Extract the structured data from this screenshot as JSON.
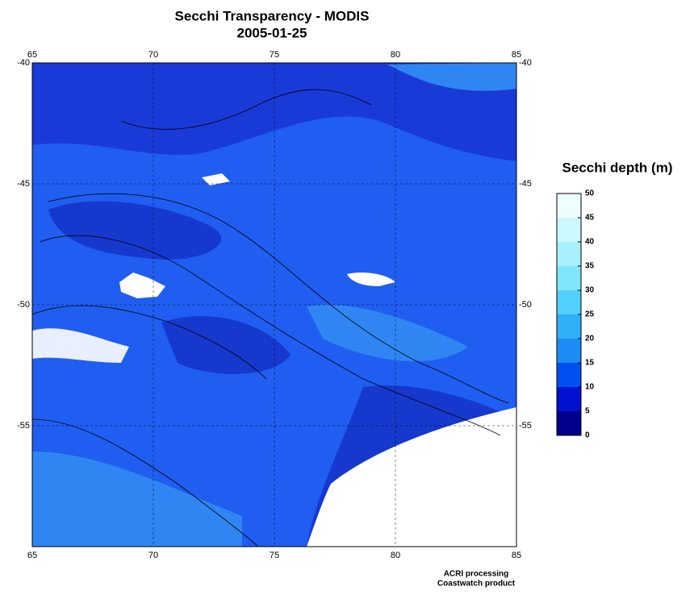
{
  "map": {
    "title": "Secchi Transparency - MODIS",
    "subtitle": "2005-01-25",
    "xlim": [
      65,
      85
    ],
    "xticks": [
      65,
      70,
      75,
      80,
      85
    ],
    "ylim": [
      -60,
      -40
    ],
    "yticks": [
      -40,
      -45,
      -50,
      -55
    ],
    "grid": true
  },
  "colorbar": {
    "title": "Secchi depth (m)",
    "lim": [
      0,
      50
    ],
    "ticks": [
      0,
      5,
      10,
      15,
      20,
      25,
      30,
      35,
      40,
      45,
      50
    ],
    "colors": [
      "#00008c",
      "#0010d0",
      "#0050f0",
      "#1c8cf4",
      "#30b0f8",
      "#50d0fa",
      "#80e6fc",
      "#a8f0fd",
      "#cbf8fe",
      "#ecffff"
    ]
  },
  "footer": [
    "ACRI processing",
    "Coastwatch product"
  ]
}
